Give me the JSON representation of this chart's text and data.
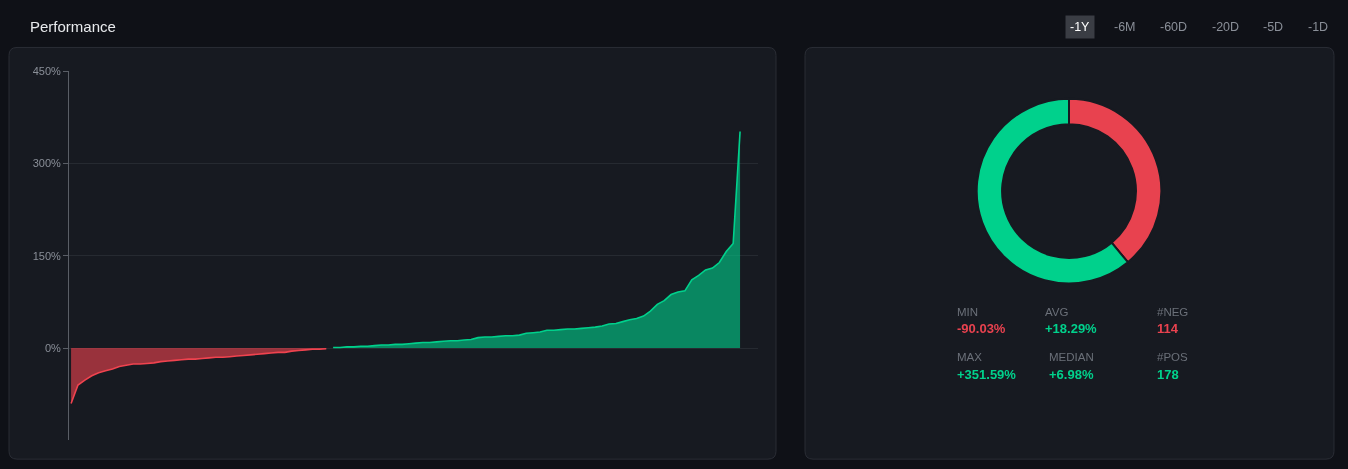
{
  "chart_data": [
    {
      "type": "area",
      "title": "Performance",
      "annotations": [
        "-1Y",
        "-6M",
        "-60D",
        "-20D",
        "-5D",
        "-1D"
      ],
      "categories": [
        null,
        null,
        null,
        null,
        null,
        null,
        null,
        null,
        null,
        null,
        null,
        null,
        null,
        null,
        null,
        null,
        null,
        null,
        null,
        null,
        null,
        null,
        null,
        null,
        null,
        null,
        null,
        null,
        null,
        null,
        null,
        null,
        null,
        null,
        null,
        null,
        null,
        null,
        null,
        null,
        null,
        null,
        null,
        null,
        null,
        null,
        null,
        null,
        null,
        null,
        null,
        null,
        null,
        null,
        null,
        null,
        null,
        null,
        null,
        null,
        null,
        null,
        null,
        null,
        null,
        null,
        null,
        null,
        null,
        null,
        null,
        null,
        null,
        null,
        null,
        null,
        null,
        null,
        null,
        null,
        null,
        null,
        null,
        null,
        null,
        null,
        null,
        null,
        null,
        null,
        null,
        null,
        null,
        null,
        null,
        null,
        null,
        null
      ],
      "series": [
        {
          "color": "#f0434f",
          "values": [
            -90,
            -60,
            -52,
            -45,
            -40,
            -37,
            -34,
            -30,
            -28,
            -26,
            -26,
            -25,
            -24,
            -22,
            -21,
            -20,
            -19,
            -18,
            -18,
            -17,
            -16,
            -15,
            -15,
            -14,
            -13,
            -12,
            -11,
            -10,
            -9,
            -8,
            -7,
            -7,
            -5,
            -4,
            -3,
            -2,
            -2,
            -1,
            null,
            null,
            null,
            null,
            null,
            null,
            null,
            null,
            null,
            null,
            null,
            null,
            null,
            null,
            null,
            null,
            null,
            null,
            null,
            null,
            null,
            null,
            null,
            null,
            null,
            null,
            null,
            null,
            null,
            null,
            null,
            null,
            null,
            null,
            null,
            null,
            null,
            null,
            null,
            null,
            null,
            null,
            null,
            null,
            null,
            null,
            null,
            null,
            null,
            null,
            null,
            null,
            null,
            null,
            null,
            null,
            null,
            null,
            null,
            null
          ]
        },
        {
          "color": "#00d18c",
          "values": [
            null,
            null,
            null,
            null,
            null,
            null,
            null,
            null,
            null,
            null,
            null,
            null,
            null,
            null,
            null,
            null,
            null,
            null,
            null,
            null,
            null,
            null,
            null,
            null,
            null,
            null,
            null,
            null,
            null,
            null,
            null,
            null,
            null,
            null,
            null,
            null,
            null,
            null,
            1,
            1,
            2,
            2,
            3,
            3,
            4,
            5,
            5,
            6,
            6,
            7,
            8,
            9,
            9,
            10,
            11,
            12,
            12,
            13,
            14,
            17,
            18,
            18,
            19,
            20,
            20,
            21,
            24,
            25,
            26,
            29,
            29,
            30,
            31,
            31,
            32,
            33,
            34,
            36,
            39,
            40,
            43,
            46,
            48,
            52,
            60,
            71,
            77,
            87,
            91,
            93,
            111,
            118,
            127,
            130,
            139,
            157,
            170,
            352
          ]
        }
      ],
      "ylim": [
        -150,
        450
      ],
      "yticks": [
        {
          "value": 0,
          "label": "0%"
        },
        {
          "value": 150,
          "label": "150%"
        },
        {
          "value": 300,
          "label": "300%"
        },
        {
          "value": 450,
          "label": "450%"
        }
      ],
      "grid": "y"
    },
    {
      "type": "donut",
      "categories": [
        null,
        null
      ],
      "values": [
        39,
        61
      ],
      "colors": [
        "#e8424f",
        "#00d18c"
      ],
      "annotations": [
        "MIN",
        "-90.03%",
        "AVG",
        "+18.29%",
        "#NEG",
        "114",
        "MAX",
        "+351.59%",
        "MEDIAN",
        "+6.98%",
        "#POS",
        "178"
      ]
    }
  ]
}
